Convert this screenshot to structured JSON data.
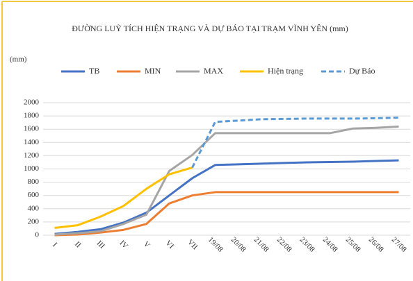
{
  "chart_data": {
    "type": "line",
    "title": "ĐƯỜNG LUỸ TÍCH HIỆN TRẠNG VÀ DỰ BÁO TẠI TRẠM VĨNH YÊN (mm)",
    "y_label": "(mm)",
    "categories": [
      "I",
      "II",
      "III",
      "IV",
      "V",
      "VI",
      "VII",
      "19/08",
      "20/08",
      "21/08",
      "22/08",
      "23/08",
      "24/08",
      "25/08",
      "26/08",
      "27/08"
    ],
    "series": [
      {
        "name": "TB",
        "color": "#4472c4",
        "style": "solid",
        "values": [
          20,
          50,
          90,
          190,
          340,
          600,
          860,
          1060,
          1070,
          1080,
          1090,
          1100,
          1105,
          1110,
          1120,
          1130
        ]
      },
      {
        "name": "MIN",
        "color": "#ed7d31",
        "style": "solid",
        "values": [
          0,
          10,
          40,
          80,
          170,
          480,
          600,
          650,
          650,
          650,
          650,
          650,
          650,
          650,
          650,
          650
        ]
      },
      {
        "name": "MAX",
        "color": "#a5a5a5",
        "style": "solid",
        "values": [
          10,
          30,
          60,
          170,
          310,
          970,
          1210,
          1540,
          1540,
          1540,
          1540,
          1540,
          1540,
          1610,
          1620,
          1640
        ]
      },
      {
        "name": "Hiện trạng",
        "color": "#ffc000",
        "style": "solid",
        "values": [
          110,
          150,
          280,
          440,
          700,
          920,
          1020,
          null,
          null,
          null,
          null,
          null,
          null,
          null,
          null,
          null
        ]
      },
      {
        "name": "Dự Báo",
        "color": "#5b9bd5",
        "style": "dashed",
        "values": [
          null,
          null,
          null,
          null,
          null,
          null,
          1020,
          1710,
          1730,
          1750,
          1755,
          1760,
          1760,
          1760,
          1765,
          1775
        ]
      }
    ],
    "ylim": [
      0,
      2000
    ],
    "yticks": [
      0,
      200,
      400,
      600,
      800,
      1000,
      1200,
      1400,
      1600,
      1800,
      2000
    ],
    "grid": true
  }
}
